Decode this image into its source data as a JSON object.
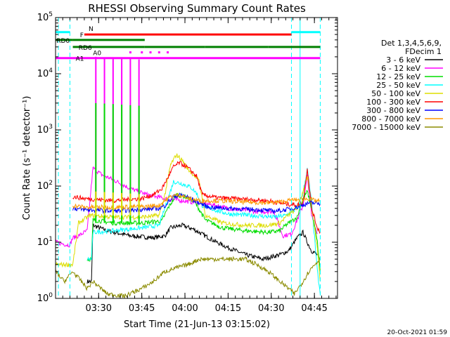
{
  "chart_data": {
    "type": "line",
    "title": "RHESSI Observing Summary Count Rates",
    "xlabel": "Start Time (21-Jun-13 03:15:02)",
    "ylabel": "Count Rate (s⁻¹ detector⁻¹)",
    "x_axis": {
      "start": "03:15:02",
      "end": "04:53",
      "range_minutes": [
        0,
        98
      ],
      "ticks": [
        "03:30",
        "03:45",
        "04:00",
        "04:15",
        "04:30",
        "04:45"
      ],
      "tick_minutes": [
        14.97,
        29.97,
        44.97,
        59.97,
        74.97,
        89.97
      ]
    },
    "y_axis": {
      "scale": "log",
      "range": [
        1,
        100000
      ],
      "tick_exponents": [
        0,
        1,
        2,
        3,
        4,
        5
      ],
      "tick_base": "10"
    },
    "legend": {
      "placement": "right",
      "header": [
        "Det 1,3,4,5,6,9,",
        "FDecim 1"
      ],
      "entries": [
        "3 - 6 keV",
        "6 - 12 keV",
        "12 - 25 keV",
        "25 - 50 keV",
        "50 - 100 keV",
        "100 - 300 keV",
        "300 - 800 keV",
        "800 - 7000 keV",
        "7000 - 15000 keV"
      ],
      "colors": [
        "#000000",
        "#ff00ff",
        "#00dd00",
        "#00ffff",
        "#dddd00",
        "#ff0000",
        "#0000ff",
        "#ff9900",
        "#8b8b00"
      ]
    },
    "series": [
      {
        "name": "3 - 6 keV",
        "color": "#000000",
        "points": [
          [
            11,
            2
          ],
          [
            12.5,
            2
          ],
          [
            13,
            20
          ],
          [
            18,
            16
          ],
          [
            26,
            13
          ],
          [
            34,
            12
          ],
          [
            38,
            13
          ],
          [
            40,
            18
          ],
          [
            44,
            20
          ],
          [
            48,
            17
          ],
          [
            52,
            13
          ],
          [
            56,
            10
          ],
          [
            60,
            8
          ],
          [
            66,
            6
          ],
          [
            72,
            5
          ],
          [
            78,
            6
          ],
          [
            81,
            7
          ],
          [
            84,
            12
          ],
          [
            86,
            15
          ],
          [
            87.5,
            10
          ],
          [
            89,
            7
          ],
          [
            91,
            6
          ]
        ]
      },
      {
        "name": "6 - 12 keV",
        "color": "#ff00ff",
        "points": [
          [
            0,
            10
          ],
          [
            4,
            9
          ],
          [
            5,
            9
          ],
          [
            6,
            12
          ],
          [
            8,
            13
          ],
          [
            10,
            15
          ],
          [
            11,
            16
          ],
          [
            13,
            210
          ],
          [
            16,
            160
          ],
          [
            20,
            130
          ],
          [
            26,
            90
          ],
          [
            32,
            70
          ],
          [
            38,
            60
          ],
          [
            44,
            55
          ],
          [
            50,
            50
          ],
          [
            56,
            45
          ],
          [
            60,
            40
          ],
          [
            64,
            38
          ],
          [
            70,
            35
          ],
          [
            76,
            35
          ],
          [
            79,
            13
          ],
          [
            82,
            14
          ],
          [
            86,
            45
          ],
          [
            87.5,
            150
          ],
          [
            89,
            30
          ],
          [
            91,
            14
          ]
        ]
      },
      {
        "name": "12 - 25 keV",
        "color": "#00dd00",
        "points": [
          [
            11,
            5
          ],
          [
            12.5,
            5
          ],
          [
            13,
            25
          ],
          [
            20,
            22
          ],
          [
            30,
            22
          ],
          [
            37,
            24
          ],
          [
            39,
            40
          ],
          [
            42,
            70
          ],
          [
            45,
            65
          ],
          [
            48,
            55
          ],
          [
            50,
            38
          ],
          [
            52,
            25
          ],
          [
            58,
            18
          ],
          [
            66,
            16
          ],
          [
            74,
            15
          ],
          [
            78,
            16
          ],
          [
            80,
            20
          ],
          [
            84,
            28
          ],
          [
            86,
            60
          ],
          [
            87.5,
            80
          ],
          [
            89,
            40
          ],
          [
            91,
            10
          ],
          [
            92,
            3
          ]
        ]
      },
      {
        "name": "25 - 50 keV",
        "color": "#00ffff",
        "points": [
          [
            11,
            5
          ],
          [
            12.5,
            5
          ],
          [
            13,
            15
          ],
          [
            20,
            16
          ],
          [
            30,
            18
          ],
          [
            36,
            20
          ],
          [
            38,
            40
          ],
          [
            41,
            120
          ],
          [
            44,
            110
          ],
          [
            47,
            95
          ],
          [
            49,
            75
          ],
          [
            51,
            45
          ],
          [
            55,
            38
          ],
          [
            60,
            32
          ],
          [
            68,
            30
          ],
          [
            76,
            28
          ],
          [
            80,
            30
          ],
          [
            84,
            40
          ],
          [
            86,
            75
          ],
          [
            87.5,
            200
          ],
          [
            89,
            50
          ],
          [
            91,
            3
          ],
          [
            92,
            1.2
          ]
        ]
      },
      {
        "name": "50 - 100 keV",
        "color": "#dddd00",
        "points": [
          [
            0,
            4
          ],
          [
            6,
            4
          ],
          [
            8,
            22
          ],
          [
            12,
            30
          ],
          [
            20,
            28
          ],
          [
            30,
            28
          ],
          [
            36,
            30
          ],
          [
            38,
            70
          ],
          [
            40,
            240
          ],
          [
            42,
            360
          ],
          [
            44,
            290
          ],
          [
            46,
            200
          ],
          [
            48,
            160
          ],
          [
            50,
            120
          ],
          [
            52,
            30
          ],
          [
            58,
            22
          ],
          [
            66,
            20
          ],
          [
            74,
            20
          ],
          [
            78,
            22
          ],
          [
            80,
            28
          ],
          [
            84,
            40
          ],
          [
            86,
            80
          ],
          [
            87.5,
            150
          ],
          [
            89,
            40
          ],
          [
            91,
            8
          ],
          [
            92,
            2
          ]
        ]
      },
      {
        "name": "100 - 300 keV",
        "color": "#ff0000",
        "points": [
          [
            6,
            65
          ],
          [
            10,
            60
          ],
          [
            20,
            55
          ],
          [
            30,
            60
          ],
          [
            34,
            70
          ],
          [
            37,
            90
          ],
          [
            39,
            140
          ],
          [
            41,
            220
          ],
          [
            43,
            260
          ],
          [
            45,
            230
          ],
          [
            47,
            190
          ],
          [
            49,
            150
          ],
          [
            51,
            70
          ],
          [
            56,
            62
          ],
          [
            66,
            58
          ],
          [
            74,
            55
          ],
          [
            78,
            50
          ],
          [
            80,
            48
          ],
          [
            84,
            46
          ],
          [
            86,
            50
          ],
          [
            87.5,
            210
          ],
          [
            89,
            40
          ],
          [
            91,
            18
          ],
          [
            92,
            15
          ]
        ]
      },
      {
        "name": "300 - 800 keV",
        "color": "#0000ff",
        "points": [
          [
            6,
            40
          ],
          [
            10,
            38
          ],
          [
            20,
            36
          ],
          [
            30,
            38
          ],
          [
            36,
            40
          ],
          [
            38,
            45
          ],
          [
            41,
            65
          ],
          [
            44,
            70
          ],
          [
            47,
            60
          ],
          [
            50,
            50
          ],
          [
            53,
            42
          ],
          [
            60,
            40
          ],
          [
            70,
            38
          ],
          [
            76,
            36
          ],
          [
            79,
            37
          ],
          [
            84,
            42
          ],
          [
            86,
            46
          ],
          [
            88,
            50
          ],
          [
            90,
            50
          ],
          [
            92,
            48
          ]
        ]
      },
      {
        "name": "800 - 7000 keV",
        "color": "#ff9900",
        "points": [
          [
            6,
            45
          ],
          [
            10,
            42
          ],
          [
            20,
            42
          ],
          [
            30,
            43
          ],
          [
            36,
            45
          ],
          [
            38,
            55
          ],
          [
            40,
            65
          ],
          [
            43,
            70
          ],
          [
            46,
            60
          ],
          [
            50,
            55
          ],
          [
            55,
            55
          ],
          [
            66,
            52
          ],
          [
            74,
            50
          ],
          [
            78,
            52
          ],
          [
            82,
            56
          ],
          [
            86,
            58
          ],
          [
            88,
            60
          ],
          [
            90,
            55
          ],
          [
            92,
            55
          ]
        ]
      },
      {
        "name": "7000 - 15000 keV",
        "color": "#8b8b00",
        "points": [
          [
            0,
            3
          ],
          [
            3,
            2
          ],
          [
            6,
            3
          ],
          [
            9,
            2
          ],
          [
            11,
            1.5
          ],
          [
            13,
            2
          ],
          [
            18,
            1.2
          ],
          [
            24,
            1.1
          ],
          [
            30,
            1.5
          ],
          [
            34,
            2
          ],
          [
            38,
            3
          ],
          [
            42,
            3.5
          ],
          [
            46,
            4
          ],
          [
            50,
            5
          ],
          [
            54,
            5
          ],
          [
            58,
            5
          ],
          [
            62,
            5
          ],
          [
            66,
            5
          ],
          [
            70,
            4
          ],
          [
            74,
            3
          ],
          [
            78,
            2
          ],
          [
            81,
            1.5
          ],
          [
            83,
            1.2
          ],
          [
            86,
            2
          ],
          [
            88,
            3
          ],
          [
            90,
            4
          ],
          [
            92,
            5
          ]
        ]
      }
    ],
    "spikes": {
      "x_minutes": [
        14,
        17,
        20,
        23,
        26,
        29
      ],
      "peaks": {
        "6 - 12 keV": 20000,
        "12 - 25 keV": 3000,
        "50 - 100 keV": 80
      }
    },
    "flag_bars": [
      {
        "label": "N",
        "color": "#00ffff",
        "y": 55000,
        "segments": [
          [
            0,
            5
          ],
          [
            82,
            92
          ]
        ]
      },
      {
        "label": "F",
        "color": "#ff0000",
        "y": 50000,
        "segments": [
          [
            10,
            82
          ]
        ]
      },
      {
        "label": "RD0",
        "color": "#008000",
        "y": 40000,
        "segments": [
          [
            0,
            6
          ],
          [
            6,
            31
          ]
        ]
      },
      {
        "label": "RD6",
        "color": "#008000",
        "y": 30000,
        "segments": [
          [
            6,
            31
          ],
          [
            31,
            52
          ],
          [
            52,
            74
          ],
          [
            74,
            92
          ]
        ]
      },
      {
        "label": "A0",
        "color": "#ff00ff",
        "y": 24000,
        "dots": [
          26,
          30,
          33,
          36,
          39
        ]
      },
      {
        "label": "A1",
        "color": "#ff00ff",
        "y": 19000,
        "segments": [
          [
            0,
            8
          ],
          [
            8,
            92
          ]
        ]
      }
    ],
    "vlines": {
      "cyan_dashed": [
        1,
        5,
        82,
        92
      ],
      "cyan_solid": [
        85
      ]
    },
    "grid": false
  },
  "footer": {
    "timestamp": "20-Oct-2021 01:59"
  }
}
